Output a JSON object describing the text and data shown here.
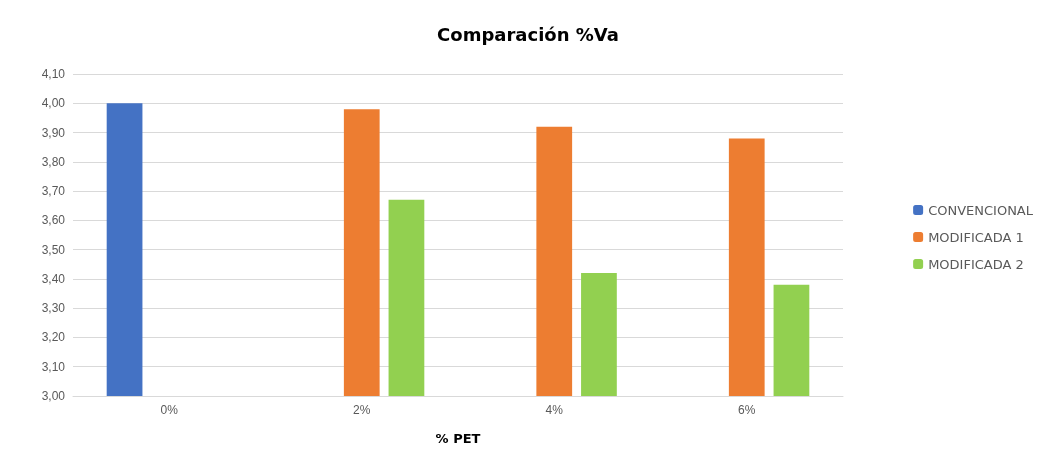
{
  "chart_data": {
    "type": "bar",
    "title": "Comparación %Va",
    "xlabel": "% PET",
    "categories": [
      "0%",
      "2%",
      "4%",
      "6%"
    ],
    "series": [
      {
        "name": "CONVENCIONAL",
        "color": "#4472c4",
        "values": [
          4.0,
          null,
          null,
          null
        ]
      },
      {
        "name": "MODIFICADA 1",
        "color": "#ed7d31",
        "values": [
          null,
          3.98,
          3.92,
          3.88
        ]
      },
      {
        "name": "MODIFICADA 2",
        "color": "#92d050",
        "values": [
          null,
          3.67,
          3.42,
          3.38
        ]
      }
    ],
    "ylim": [
      3.0,
      4.1
    ],
    "yticks": [
      {
        "value": 3.0,
        "label": "3,00"
      },
      {
        "value": 3.1,
        "label": "3,10"
      },
      {
        "value": 3.2,
        "label": "3,20"
      },
      {
        "value": 3.3,
        "label": "3,30"
      },
      {
        "value": 3.4,
        "label": "3,40"
      },
      {
        "value": 3.5,
        "label": "3,50"
      },
      {
        "value": 3.6,
        "label": "3,60"
      },
      {
        "value": 3.7,
        "label": "3,70"
      },
      {
        "value": 3.8,
        "label": "3,80"
      },
      {
        "value": 3.9,
        "label": "3,90"
      },
      {
        "value": 4.0,
        "label": "4,00"
      },
      {
        "value": 4.1,
        "label": "4,10"
      }
    ],
    "grid": "y",
    "legend": "right"
  }
}
